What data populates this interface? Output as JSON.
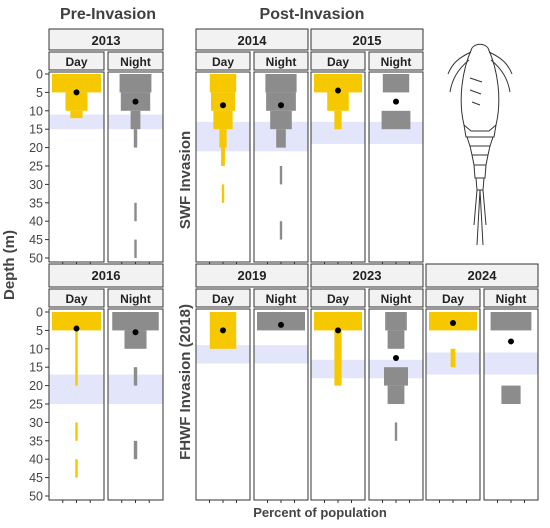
{
  "headers": {
    "pre": "Pre-Invasion",
    "post": "Post-Invasion",
    "row1_label": "SWF Invasion",
    "row2_label": "FHWF Invasion (2018)"
  },
  "axes": {
    "ylabel": "Depth (m)",
    "xlabel": "Percent of population",
    "depth_ticks": [
      0,
      5,
      10,
      15,
      20,
      25,
      30,
      35,
      40,
      45,
      50
    ]
  },
  "colors": {
    "day": "#F5C800",
    "night": "#8C8C8C",
    "band": "#E3E6FA",
    "mean_dot": "#000000",
    "strip_bg": "#F2F2F2"
  },
  "chart_data": [
    {
      "type": "bar",
      "title": "2013",
      "row": 1,
      "ylim": [
        0,
        50
      ],
      "shaded_band": [
        11,
        15
      ],
      "day": {
        "label": "Day",
        "mean": 5,
        "bars": [
          [
            0,
            5,
            1.0
          ],
          [
            5,
            10,
            0.45
          ],
          [
            10,
            12,
            0.25
          ]
        ]
      },
      "night": {
        "label": "Night",
        "mean": 7.5,
        "bars": [
          [
            0,
            5,
            0.65
          ],
          [
            5,
            10,
            0.6
          ],
          [
            10,
            15,
            0.2
          ],
          [
            15,
            20,
            0.07
          ],
          [
            35,
            40,
            0.05
          ],
          [
            45,
            50,
            0.05
          ]
        ]
      }
    },
    {
      "type": "bar",
      "title": "2014",
      "row": 1,
      "ylim": [
        0,
        50
      ],
      "shaded_band": [
        13,
        21
      ],
      "day": {
        "label": "Day",
        "mean": 8.5,
        "bars": [
          [
            0,
            5,
            0.55
          ],
          [
            5,
            10,
            0.5
          ],
          [
            10,
            15,
            0.4
          ],
          [
            15,
            20,
            0.15
          ],
          [
            20,
            25,
            0.08
          ],
          [
            30,
            35,
            0.05
          ]
        ]
      },
      "night": {
        "label": "Night",
        "mean": 8.5,
        "bars": [
          [
            0,
            5,
            0.65
          ],
          [
            5,
            10,
            0.62
          ],
          [
            10,
            15,
            0.45
          ],
          [
            15,
            20,
            0.2
          ],
          [
            25,
            30,
            0.05
          ],
          [
            40,
            45,
            0.05
          ]
        ]
      }
    },
    {
      "type": "bar",
      "title": "2015",
      "row": 1,
      "ylim": [
        0,
        50
      ],
      "shaded_band": [
        13,
        19
      ],
      "day": {
        "label": "Day",
        "mean": 4.5,
        "bars": [
          [
            0,
            5,
            1.0
          ],
          [
            5,
            10,
            0.45
          ],
          [
            10,
            15,
            0.15
          ]
        ]
      },
      "night": {
        "label": "Night",
        "mean": 7.5,
        "bars": [
          [
            0,
            5,
            0.55
          ],
          [
            10,
            15,
            0.6
          ]
        ]
      }
    },
    {
      "type": "bar",
      "title": "2016",
      "row": 2,
      "ylim": [
        0,
        50
      ],
      "shaded_band": [
        17,
        25
      ],
      "day": {
        "label": "Day",
        "mean": 4.5,
        "bars": [
          [
            0,
            5,
            1.0
          ],
          [
            5,
            20,
            0.05
          ],
          [
            30,
            35,
            0.05
          ],
          [
            40,
            45,
            0.05
          ]
        ]
      },
      "night": {
        "label": "Night",
        "mean": 5.5,
        "bars": [
          [
            0,
            5,
            0.95
          ],
          [
            5,
            10,
            0.45
          ],
          [
            15,
            20,
            0.07
          ],
          [
            35,
            40,
            0.07
          ]
        ]
      }
    },
    {
      "type": "bar",
      "title": "2019",
      "row": 2,
      "ylim": [
        0,
        50
      ],
      "shaded_band": [
        9,
        14
      ],
      "day": {
        "label": "Day",
        "mean": 5,
        "bars": [
          [
            0,
            10,
            0.55
          ]
        ]
      },
      "night": {
        "label": "Night",
        "mean": 3.5,
        "bars": [
          [
            0,
            5,
            1.0
          ]
        ]
      }
    },
    {
      "type": "bar",
      "title": "2023",
      "row": 2,
      "ylim": [
        0,
        50
      ],
      "shaded_band": [
        13,
        18
      ],
      "day": {
        "label": "Day",
        "mean": 5,
        "bars": [
          [
            0,
            5,
            1.0
          ],
          [
            5,
            20,
            0.15
          ]
        ]
      },
      "night": {
        "label": "Night",
        "mean": 12.5,
        "bars": [
          [
            0,
            5,
            0.45
          ],
          [
            5,
            10,
            0.35
          ],
          [
            15,
            20,
            0.5
          ],
          [
            20,
            25,
            0.35
          ],
          [
            30,
            35,
            0.05
          ]
        ]
      }
    },
    {
      "type": "bar",
      "title": "2024",
      "row": 2,
      "ylim": [
        0,
        50
      ],
      "shaded_band": [
        11,
        17
      ],
      "day": {
        "label": "Day",
        "mean": 3,
        "bars": [
          [
            0,
            5,
            1.0
          ],
          [
            10,
            15,
            0.1
          ]
        ]
      },
      "night": {
        "label": "Night",
        "mean": 8,
        "bars": [
          [
            0,
            5,
            0.85
          ],
          [
            20,
            25,
            0.4
          ]
        ]
      }
    }
  ]
}
